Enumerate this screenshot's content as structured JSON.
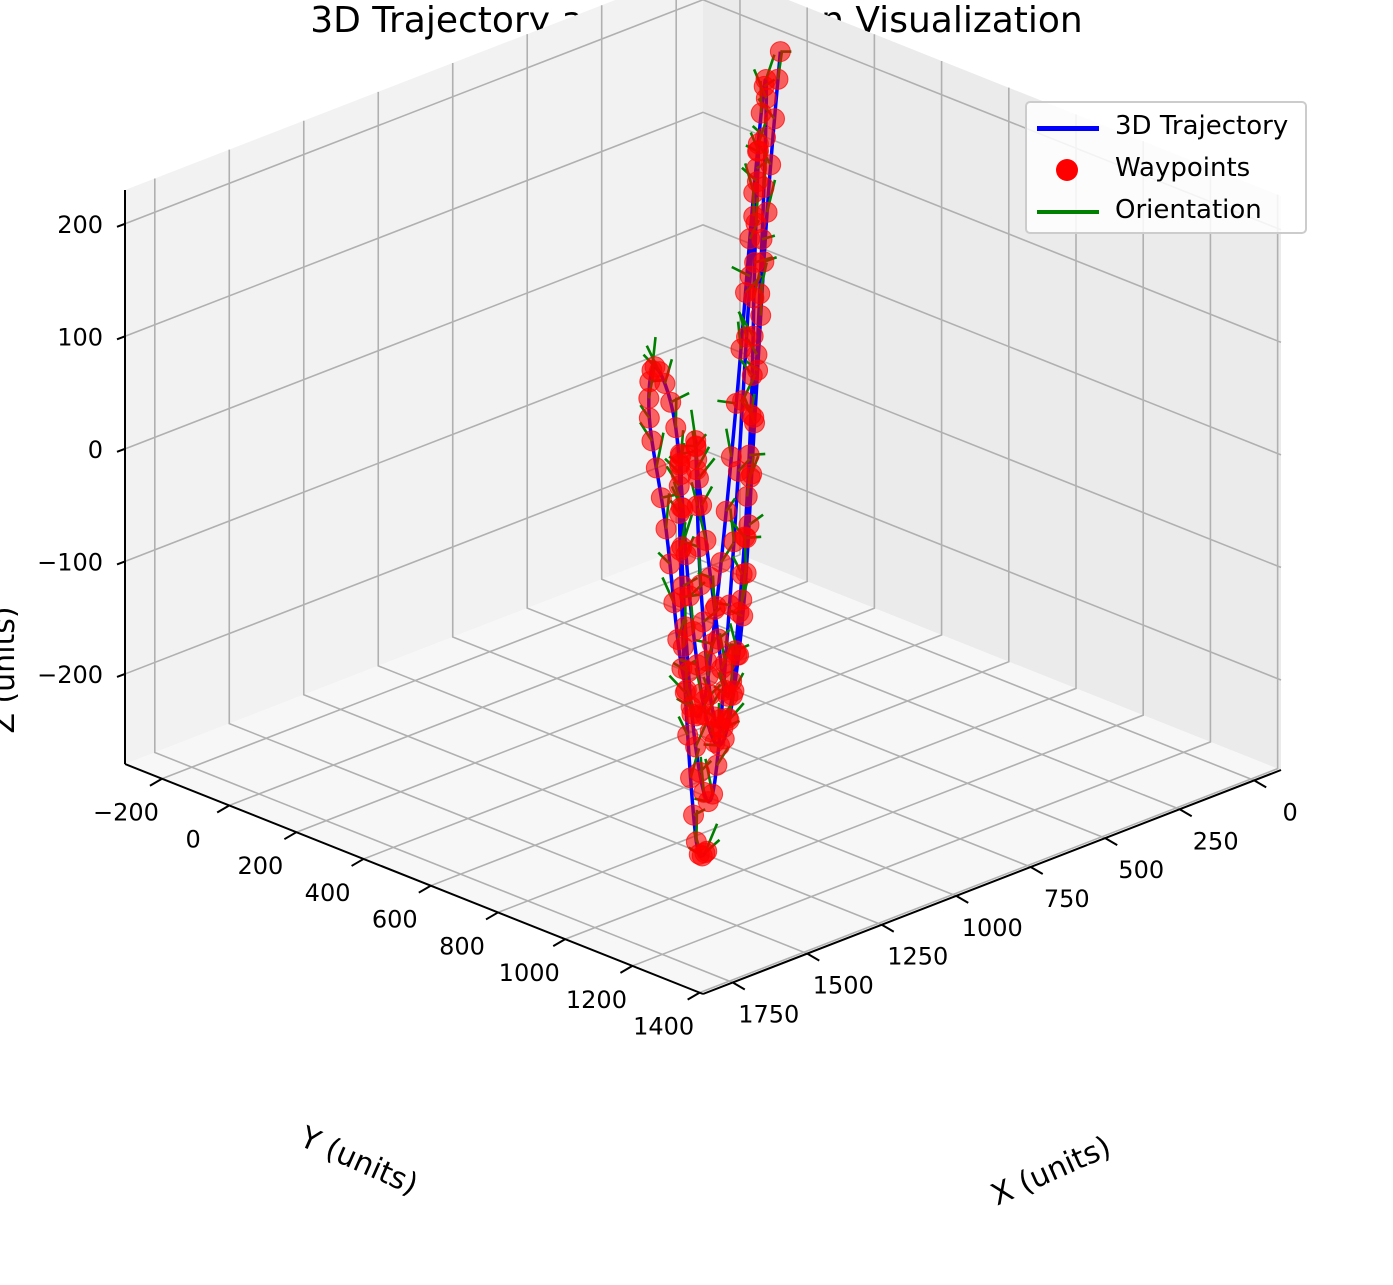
{
  "chart_data": {
    "type": "3d-line",
    "title": "3D Trajectory and Orientation Visualization",
    "xlabel": "X (units)",
    "ylabel": "Y (units)",
    "zlabel": "Z (units)",
    "xlim": [
      -90,
      1850
    ],
    "ylim": [
      -310,
      1410
    ],
    "zlim": [
      -280,
      230
    ],
    "x_ticks": [
      0,
      250,
      500,
      750,
      1000,
      1250,
      1500,
      1750
    ],
    "x_tick_labels": [
      "0",
      "250",
      "500",
      "750",
      "1000",
      "1250",
      "1500",
      "1750"
    ],
    "y_ticks": [
      -200,
      0,
      200,
      400,
      600,
      800,
      1000,
      1200,
      1400
    ],
    "y_tick_labels": [
      "−200",
      "0",
      "200",
      "400",
      "600",
      "800",
      "1000",
      "1200",
      "1400"
    ],
    "z_ticks": [
      -200,
      -100,
      0,
      100,
      200
    ],
    "z_tick_labels": [
      "−200",
      "−100",
      "0",
      "100",
      "200"
    ],
    "grid": true,
    "legend_position": "top-right",
    "legend": [
      {
        "label": "3D Trajectory",
        "kind": "line",
        "color": "#0000ff"
      },
      {
        "label": "Waypoints",
        "kind": "marker",
        "color": "#ff0000"
      },
      {
        "label": "Orientation",
        "kind": "line",
        "color": "#008000"
      }
    ],
    "series": [
      {
        "name": "3D Trajectory",
        "kind": "line",
        "color": "#0000ff",
        "description_points": "approximate (x, y, z) samples of the path, read off the projected view",
        "points": [
          [
            0,
            0,
            200
          ],
          [
            180,
            120,
            90
          ],
          [
            380,
            260,
            -60
          ],
          [
            600,
            420,
            -190
          ],
          [
            820,
            560,
            -260
          ],
          [
            1040,
            700,
            -200
          ],
          [
            1230,
            820,
            -60
          ],
          [
            1400,
            930,
            120
          ],
          [
            1560,
            1010,
            200
          ],
          [
            1500,
            940,
            140
          ],
          [
            1320,
            830,
            10
          ],
          [
            1120,
            700,
            -150
          ],
          [
            900,
            560,
            -230
          ],
          [
            700,
            430,
            -170
          ],
          [
            520,
            330,
            -20
          ],
          [
            360,
            240,
            140
          ],
          [
            240,
            170,
            220
          ],
          [
            400,
            300,
            110
          ],
          [
            620,
            460,
            -60
          ],
          [
            860,
            620,
            -210
          ],
          [
            1080,
            760,
            -190
          ],
          [
            1260,
            880,
            -40
          ],
          [
            1400,
            990,
            110
          ],
          [
            1290,
            900,
            60
          ],
          [
            1100,
            780,
            -90
          ],
          [
            920,
            660,
            -200
          ],
          [
            760,
            560,
            -120
          ],
          [
            640,
            480,
            0
          ],
          [
            560,
            420,
            120
          ],
          [
            480,
            360,
            210
          ],
          [
            700,
            520,
            80
          ],
          [
            960,
            700,
            -110
          ],
          [
            1220,
            880,
            -230
          ],
          [
            1480,
            1060,
            -140
          ],
          [
            1680,
            1200,
            40
          ],
          [
            1800,
            1300,
            180
          ],
          [
            1760,
            1260,
            120
          ],
          [
            1650,
            1180,
            -60
          ],
          [
            1500,
            1080,
            -220
          ],
          [
            1330,
            960,
            -260
          ]
        ]
      },
      {
        "name": "Waypoints",
        "kind": "scatter",
        "color": "#ff0000",
        "note": "markers placed along the trajectory at regular intervals"
      },
      {
        "name": "Orientation",
        "kind": "quiver",
        "color": "#008000",
        "note": "short orientation vectors attached to waypoints"
      }
    ]
  }
}
